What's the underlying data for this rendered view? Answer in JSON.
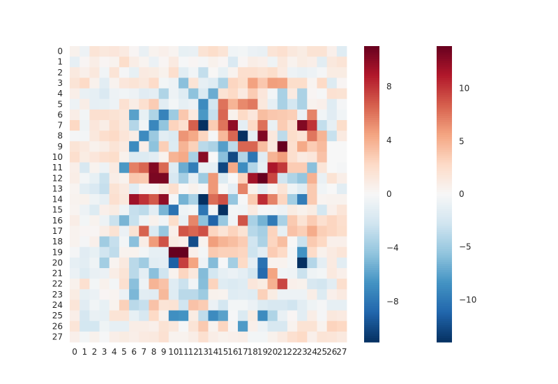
{
  "chart_data": {
    "type": "heatmap",
    "rows": [
      "0",
      "1",
      "2",
      "3",
      "4",
      "5",
      "6",
      "7",
      "8",
      "9",
      "10",
      "11",
      "12",
      "13",
      "14",
      "15",
      "16",
      "17",
      "18",
      "19",
      "20",
      "21",
      "22",
      "23",
      "24",
      "25",
      "26",
      "27"
    ],
    "cols": [
      "0",
      "1",
      "2",
      "3",
      "4",
      "5",
      "6",
      "7",
      "8",
      "9",
      "10",
      "11",
      "12",
      "13",
      "14",
      "15",
      "16",
      "17",
      "18",
      "19",
      "20",
      "21",
      "22",
      "23",
      "24",
      "25",
      "26",
      "27"
    ],
    "cmap": "RdBu_r",
    "values": [
      [
        0.5,
        -0.6,
        1.5,
        1.2,
        1.3,
        1.0,
        0.2,
        -0.8,
        0.4,
        0.6,
        0.3,
        -0.9,
        -0.8,
        1.6,
        2.0,
        1.5,
        -0.4,
        -0.3,
        -0.7,
        -0.8,
        1.5,
        1.8,
        1.2,
        0.9,
        1.6,
        1.6,
        0.6,
        -1.4
      ],
      [
        -1.0,
        0.2,
        0.8,
        0.2,
        0.4,
        2.0,
        0.8,
        0.3,
        -0.7,
        0.2,
        1.0,
        -0.1,
        0.2,
        -0.2,
        0.5,
        0.2,
        -1.7,
        0.2,
        0.8,
        0.6,
        -0.5,
        1.2,
        0.4,
        0.9,
        0.7,
        -1.2,
        1.2,
        1.5
      ],
      [
        1.1,
        0.6,
        1.2,
        -0.4,
        1.5,
        -0.2,
        -0.9,
        1.0,
        0.9,
        0.5,
        1.9,
        -1.2,
        -0.4,
        -2.7,
        0.1,
        -0.9,
        0.4,
        1.9,
        1.9,
        1.6,
        2.0,
        1.0,
        -0.6,
        -0.8,
        -0.6,
        -0.2,
        0.9,
        0.9
      ],
      [
        1.5,
        2.2,
        0.5,
        -1.2,
        0.4,
        1.3,
        1.5,
        1.2,
        2.1,
        -0.3,
        -0.6,
        -4.6,
        1.5,
        -1.0,
        -1.4,
        -3.5,
        2.4,
        2.0,
        4.5,
        3.0,
        4.6,
        4.5,
        2.0,
        2.0,
        0.3,
        2.2,
        -1.5,
        0.2
      ],
      [
        0.7,
        -0.8,
        -1.0,
        -1.7,
        -0.6,
        -0.4,
        -0.6,
        -1.3,
        -1.1,
        -3.4,
        -0.6,
        -1.4,
        -4.5,
        -1.6,
        -5.5,
        1.6,
        2.2,
        1.0,
        2.8,
        1.3,
        -0.3,
        -3.6,
        1.0,
        -3.5,
        0.2,
        -0.1,
        1.7,
        1.6
      ],
      [
        -0.6,
        0.8,
        -1.0,
        -0.9,
        -0.6,
        1.7,
        0.8,
        1.8,
        2.8,
        -1.2,
        -0.3,
        -1.0,
        -0.7,
        -7.0,
        -2.1,
        6.0,
        3.8,
        5.3,
        5.8,
        1.2,
        -1.0,
        -3.6,
        -2.0,
        -3.5,
        0.4,
        0.6,
        -1.4,
        -0.2
      ],
      [
        0.8,
        -0.3,
        1.8,
        1.8,
        1.6,
        1.3,
        -6.0,
        -0.9,
        -3.4,
        -7.4,
        -4.0,
        3.0,
        1.1,
        -6.4,
        -2.6,
        6.4,
        0.5,
        2.2,
        1.3,
        3.4,
        3.0,
        2.9,
        2.7,
        -0.7,
        5.5,
        -0.4,
        -1.3,
        -0.4
      ],
      [
        2.3,
        -0.5,
        1.3,
        0.8,
        1.9,
        1.2,
        -3.2,
        -0.4,
        -7.2,
        -4.4,
        2.5,
        1.8,
        6.6,
        -12.0,
        2.8,
        6.0,
        9.8,
        -1.1,
        2.2,
        6.1,
        -0.8,
        2.8,
        1.9,
        10.2,
        8.0,
        -2.7,
        -1.0,
        2.0
      ],
      [
        -0.2,
        -0.3,
        1.2,
        1.9,
        2.2,
        1.4,
        0.8,
        -7.0,
        -4.1,
        -1.2,
        -1.6,
        4.9,
        4.2,
        2.4,
        -0.2,
        3.6,
        6.4,
        -14.0,
        -1.0,
        10.3,
        1.2,
        -2.9,
        2.0,
        1.5,
        5.9,
        3.8,
        -2.5,
        1.0
      ],
      [
        1.5,
        1.1,
        0.5,
        0.8,
        1.5,
        1.0,
        -7.0,
        0.7,
        -4.5,
        2.7,
        -1.5,
        3.8,
        2.6,
        -3.0,
        -3.5,
        -6.1,
        -2.9,
        6.4,
        6.4,
        3.4,
        1.1,
        11.0,
        1.9,
        4.2,
        2.8,
        3.5,
        0.0,
        0.0
      ],
      [
        1.9,
        0.9,
        1.3,
        1.8,
        2.0,
        0.5,
        -1.5,
        -1.5,
        -1.2,
        0.4,
        3.8,
        4.2,
        -3.6,
        10.0,
        0.0,
        -4.6,
        -10.0,
        -3.3,
        -8.0,
        -1.3,
        3.8,
        4.6,
        1.9,
        1.0,
        1.3,
        3.2,
        0.0,
        0.0
      ],
      [
        0.7,
        -1.8,
        0.4,
        -0.6,
        1.0,
        -6.4,
        5.6,
        6.4,
        10.2,
        6.3,
        -1.4,
        -5.5,
        -7.7,
        -0.8,
        -1.0,
        -10.1,
        4.2,
        -6.9,
        -3.3,
        -1.0,
        9.0,
        7.8,
        2.8,
        2.8,
        -4.6,
        1.4,
        0.0,
        -0.2
      ],
      [
        0.8,
        -0.3,
        -0.9,
        -2.4,
        0.8,
        0.4,
        3.0,
        2.9,
        10.4,
        10.4,
        -1.8,
        -3.7,
        -1.0,
        -4.0,
        4.8,
        -1.5,
        0.0,
        2.5,
        9.3,
        11.4,
        7.4,
        -2.2,
        -3.4,
        -4.3,
        3.9,
        -0.8,
        1.6,
        0.7
      ],
      [
        0.3,
        -1.2,
        -1.7,
        -2.6,
        1.6,
        1.0,
        -1.3,
        0.2,
        0.2,
        0.9,
        1.9,
        0.1,
        0.5,
        -0.2,
        4.8,
        0.1,
        -1.1,
        5.5,
        0.5,
        -1.1,
        0.3,
        1.5,
        -0.5,
        -1.4,
        2.9,
        -0.4,
        0.0,
        -1.2
      ],
      [
        0.4,
        0.5,
        -0.5,
        -1.0,
        1.8,
        1.2,
        9.4,
        8.0,
        6.8,
        9.8,
        -0.2,
        -5.2,
        -3.6,
        -14.2,
        6.2,
        7.1,
        -4.3,
        -0.1,
        2.9,
        8.2,
        5.5,
        2.4,
        -3.8,
        -7.7,
        2.9,
        0.3,
        0.4,
        0.4
      ],
      [
        0.3,
        -0.6,
        -1.5,
        0.6,
        0.9,
        -0.5,
        -2.6,
        -2.9,
        -1.2,
        -5.1,
        -8.2,
        -0.5,
        -0.3,
        -8.0,
        -0.4,
        -12.0,
        -0.3,
        -0.4,
        1.0,
        -0.2,
        -0.3,
        -0.6,
        0.9,
        0.5,
        0.9,
        -2.0,
        0.6,
        1.4
      ],
      [
        0.8,
        -0.3,
        0.4,
        -0.6,
        -2.4,
        -5.1,
        -2.5,
        -0.5,
        0.5,
        -0.4,
        2.0,
        -0.8,
        5.4,
        -4.5,
        -8.9,
        -4.2,
        -0.4,
        7.0,
        -3.6,
        -5.2,
        -7.8,
        -3.6,
        2.9,
        1.6,
        2.8,
        1.8,
        2.4,
        1.9
      ],
      [
        0.4,
        0.2,
        0.2,
        0.8,
        1.6,
        -0.7,
        1.6,
        6.5,
        -1.6,
        -4.2,
        0.6,
        6.9,
        6.4,
        7.1,
        2.4,
        1.5,
        2.5,
        1.6,
        -3.1,
        -3.7,
        2.5,
        -0.9,
        3.2,
        2.7,
        4.1,
        2.7,
        2.4,
        2.0
      ],
      [
        0.4,
        -0.2,
        0.6,
        -3.9,
        -2.6,
        -0.3,
        -4.6,
        0.8,
        4.7,
        7.0,
        0.9,
        0.6,
        -9.8,
        0.4,
        4.6,
        3.8,
        3.4,
        2.8,
        -2.2,
        -3.5,
        2.4,
        3.4,
        0.1,
        -2.4,
        2.9,
        2.3,
        0.6,
        0.6
      ],
      [
        -0.2,
        -1.3,
        -0.9,
        -2.2,
        -2.8,
        0.4,
        0.4,
        -0.3,
        -1.0,
        -1.0,
        11.8,
        12.0,
        0.6,
        -0.3,
        2.9,
        2.6,
        2.6,
        2.4,
        -2.3,
        -1.2,
        2.8,
        2.2,
        -0.3,
        -6.6,
        2.1,
        0.5,
        1.0,
        1.4
      ],
      [
        -1.0,
        -1.2,
        -0.5,
        -3.8,
        0.3,
        1.1,
        -3.0,
        -3.9,
        -1.2,
        -1.1,
        -9.0,
        7.6,
        4.4,
        -0.6,
        -4.8,
        -0.1,
        -3.8,
        2.2,
        -1.1,
        -8.2,
        0.4,
        0.4,
        -0.3,
        -11.0,
        -3.2,
        -1.1,
        1.0,
        -1.2
      ],
      [
        -0.7,
        -1.5,
        -0.8,
        -0.7,
        0.8,
        1.5,
        -3.0,
        -1.1,
        -4.6,
        -2.2,
        0.4,
        2.4,
        1.2,
        -4.8,
        -2.0,
        -1.0,
        -0.7,
        -1.1,
        -2.0,
        -8.6,
        4.4,
        -0.4,
        -0.5,
        -2.4,
        -0.5,
        -0.3,
        1.1,
        0.6
      ],
      [
        0.5,
        1.8,
        -0.3,
        0.5,
        -0.3,
        1.8,
        -4.6,
        -0.6,
        3.8,
        3.2,
        -1.4,
        -2.4,
        -0.4,
        -4.7,
        2.5,
        -1.4,
        -1.6,
        -1.4,
        1.3,
        0.9,
        3.9,
        7.4,
        0.6,
        0.5,
        -1.8,
        -2.1,
        -1.2,
        1.9
      ],
      [
        0.9,
        -0.9,
        -0.7,
        0.2,
        0.3,
        -0.7,
        -5.0,
        -1.2,
        -1.3,
        3.6,
        -1.4,
        -3.0,
        -3.0,
        -4.0,
        0.5,
        0.4,
        -1.4,
        -1.2,
        -1.4,
        2.6,
        0.9,
        -0.6,
        -0.6,
        -0.6,
        0.8,
        -1.5,
        0.6,
        1.0
      ],
      [
        1.4,
        -1.3,
        -0.4,
        -0.9,
        0.4,
        2.6,
        -3.0,
        -2.6,
        3.2,
        1.5,
        1.6,
        -2.2,
        3.2,
        2.8,
        -0.7,
        -2.0,
        -0.3,
        -0.3,
        -0.7,
        -1.5,
        -1.8,
        -1.8,
        -2.2,
        -1.2,
        -0.5,
        -0.2,
        -1.0,
        -1.0
      ],
      [
        0.7,
        -1.9,
        -0.8,
        -1.0,
        1.5,
        1.5,
        -0.9,
        -1.8,
        2.2,
        0.5,
        -6.8,
        -6.6,
        0.9,
        -2.8,
        -7.0,
        -6.0,
        -0.1,
        -1.6,
        0.9,
        -7.0,
        -3.4,
        -0.8,
        0.2,
        -1.2,
        0.8,
        -0.2,
        1.2,
        1.0
      ],
      [
        1.4,
        -2.0,
        -2.0,
        -0.5,
        -1.0,
        -1.0,
        0.8,
        0.8,
        0.6,
        1.6,
        1.2,
        -0.1,
        1.5,
        2.9,
        0.4,
        2.4,
        0.2,
        -6.3,
        0.6,
        -0.6,
        -1.8,
        -1.8,
        0.4,
        1.6,
        1.6,
        0.4,
        2.5,
        2.3
      ],
      [
        0.6,
        -0.3,
        0.5,
        -0.1,
        0.7,
        0.9,
        0.7,
        1.0,
        1.1,
        1.7,
        0.4,
        0.4,
        0.8,
        1.8,
        0.8,
        0.5,
        0.6,
        0.7,
        -0.3,
        -0.3,
        0.5,
        1.0,
        1.8,
        2.2,
        0.6,
        1.5,
        1.4,
        1.1
      ]
    ],
    "colorbars": [
      {
        "vmin": -11,
        "vmax": 11,
        "ticks": [
          -8,
          -4,
          0,
          4,
          8
        ],
        "tick_labels": [
          "−8",
          "−4",
          "0",
          "4",
          "8"
        ]
      },
      {
        "vmin": -14,
        "vmax": 14,
        "ticks": [
          -10,
          -5,
          0,
          5,
          10
        ],
        "tick_labels": [
          "−10",
          "−5",
          "0",
          "5",
          "10"
        ]
      }
    ],
    "colors": {
      "dark_blue": "#053061",
      "blue": "#2166ac",
      "mid_blue": "#4393c3",
      "light_blue": "#92c5de",
      "pale_blue": "#d1e5f0",
      "white": "#f7f7f7",
      "pale_red": "#fddbc7",
      "light_red": "#f4a582",
      "mid_red": "#d6604d",
      "red": "#b2182b",
      "dark_red": "#67001f"
    }
  }
}
